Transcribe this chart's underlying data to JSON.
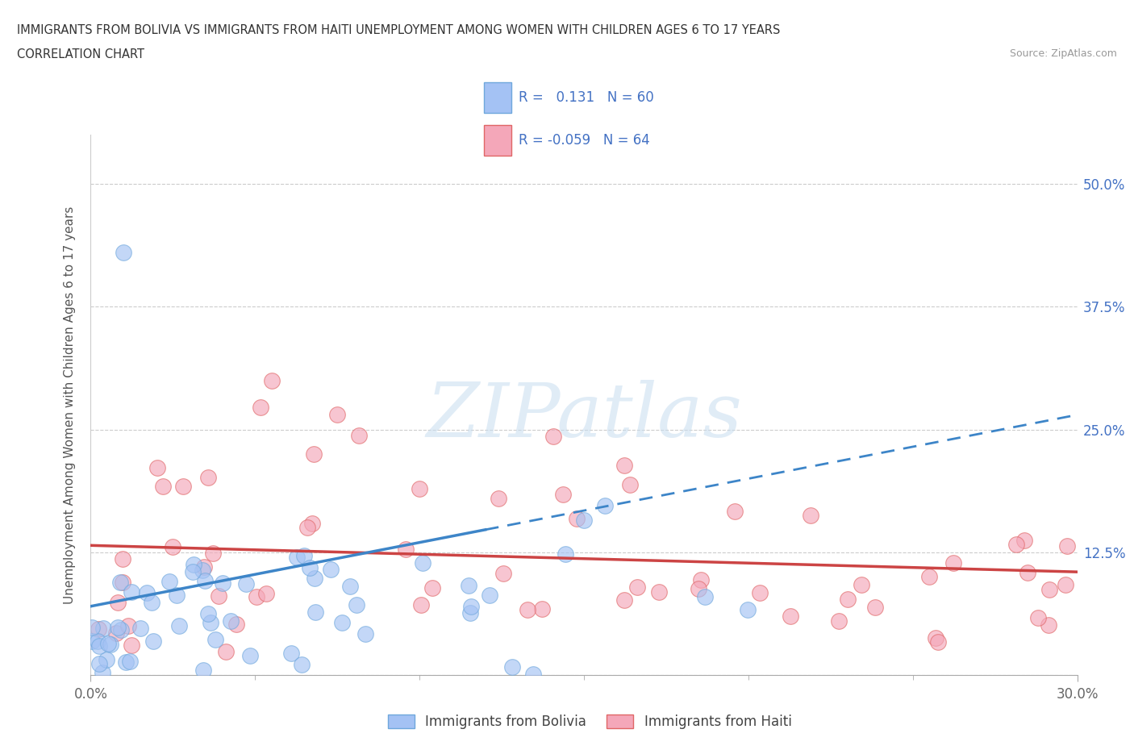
{
  "title_line1": "IMMIGRANTS FROM BOLIVIA VS IMMIGRANTS FROM HAITI UNEMPLOYMENT AMONG WOMEN WITH CHILDREN AGES 6 TO 17 YEARS",
  "title_line2": "CORRELATION CHART",
  "source": "Source: ZipAtlas.com",
  "ylabel": "Unemployment Among Women with Children Ages 6 to 17 years",
  "xlim": [
    0.0,
    0.3
  ],
  "ylim": [
    0.0,
    0.55
  ],
  "y_ticks": [
    0.0,
    0.125,
    0.25,
    0.375,
    0.5
  ],
  "y_tick_labels": [
    "",
    "12.5%",
    "25.0%",
    "37.5%",
    "50.0%"
  ],
  "bolivia_R": 0.131,
  "bolivia_N": 60,
  "haiti_R": -0.059,
  "haiti_N": 64,
  "bolivia_scatter_color": "#a4c2f4",
  "bolivia_edge_color": "#6fa8dc",
  "haiti_scatter_color": "#f4a7b9",
  "haiti_edge_color": "#e06666",
  "trend_bolivia_color": "#3d85c8",
  "trend_haiti_color": "#cc4444",
  "watermark": "ZIPatlas",
  "background_color": "#ffffff",
  "grid_color": "#cccccc",
  "legend_text_color": "#4472c4",
  "title_color": "#333333",
  "tick_color_y": "#4472c4",
  "tick_color_x": "#666666"
}
